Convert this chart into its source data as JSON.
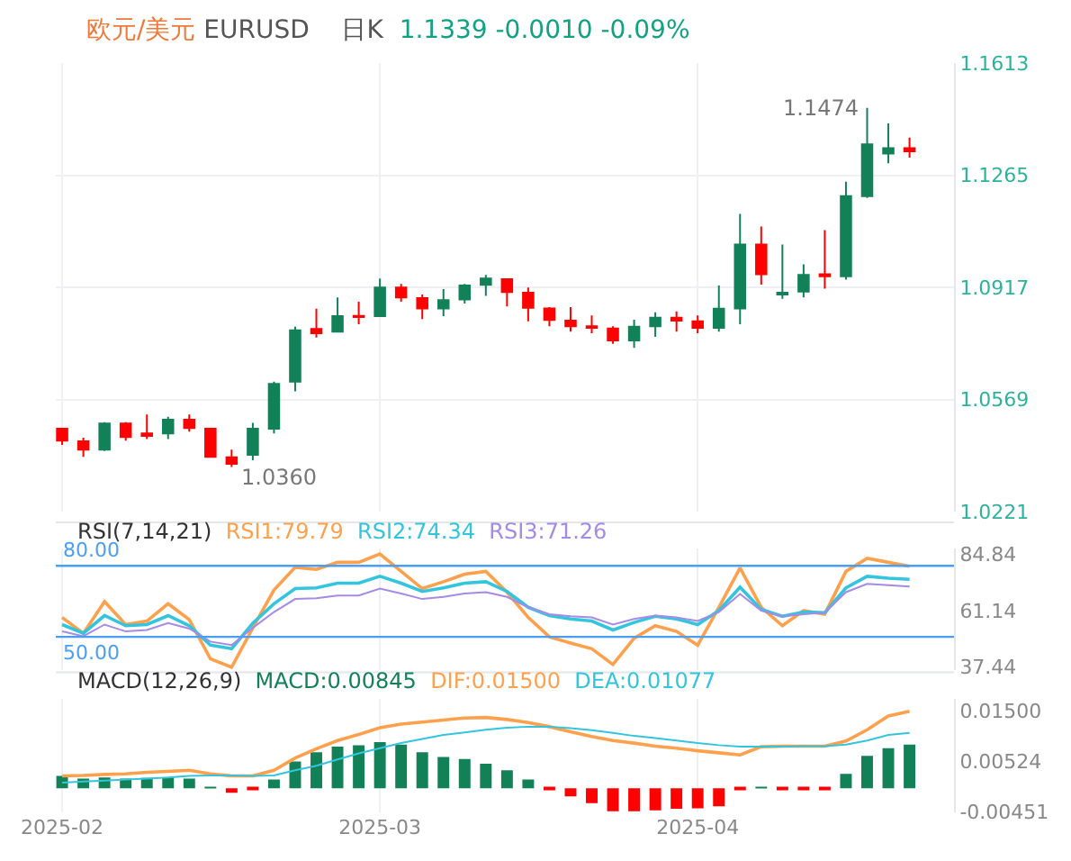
{
  "chart_data": [
    {
      "type": "candlestick",
      "title": "欧元/美元",
      "subtitle": "EURUSD",
      "annotations": [
        "日K",
        "1.1339 -0.0010 -0.09%",
        "1.1474",
        "1.0360"
      ],
      "categories": [
        "2025-02",
        null,
        null,
        null,
        null,
        null,
        null,
        null,
        null,
        null,
        null,
        null,
        null,
        null,
        null,
        "2025-03",
        null,
        null,
        null,
        null,
        null,
        null,
        null,
        null,
        null,
        null,
        null,
        null,
        null,
        null,
        "2025-04",
        null,
        null,
        null,
        null,
        null,
        null,
        null,
        null,
        null,
        null
      ],
      "ohlc": [
        [
          1.0479,
          1.0481,
          1.0429,
          1.0442
        ],
        [
          1.044,
          1.0451,
          1.0392,
          1.0414
        ],
        [
          1.0414,
          1.0499,
          1.041,
          1.0495
        ],
        [
          1.0495,
          1.0499,
          1.0442,
          1.0453
        ],
        [
          1.0464,
          1.0523,
          1.0447,
          1.0457
        ],
        [
          1.0464,
          1.0516,
          1.0447,
          1.0507
        ],
        [
          1.0507,
          1.0523,
          1.047,
          1.0481
        ],
        [
          1.0479,
          1.0482,
          1.039,
          1.0392
        ],
        [
          1.039,
          1.0414,
          1.036,
          1.037
        ],
        [
          1.0398,
          1.0497,
          1.0381,
          1.0479
        ],
        [
          1.0479,
          1.0625,
          1.0464,
          1.0618
        ],
        [
          1.0625,
          1.0795,
          1.0595,
          1.0784
        ],
        [
          1.0788,
          1.0851,
          1.0762,
          1.0775
        ],
        [
          1.078,
          1.0886,
          1.0779,
          1.0828
        ],
        [
          1.0829,
          1.0873,
          1.0803,
          1.0825
        ],
        [
          1.0828,
          1.0945,
          1.0825,
          1.0917
        ],
        [
          1.0917,
          1.0928,
          1.0873,
          1.0886
        ],
        [
          1.0884,
          1.0895,
          1.0819,
          1.0852
        ],
        [
          1.0852,
          1.0912,
          1.0828,
          1.0878
        ],
        [
          1.088,
          1.0928,
          1.0867,
          1.0923
        ],
        [
          1.0925,
          1.0956,
          1.0891,
          1.0945
        ],
        [
          1.0943,
          1.0945,
          1.0858,
          1.0903
        ],
        [
          1.0901,
          1.0917,
          1.0812,
          1.0854
        ],
        [
          1.0852,
          1.0856,
          1.0797,
          1.0816
        ],
        [
          1.0814,
          1.0856,
          1.078,
          1.0797
        ],
        [
          1.0797,
          1.083,
          1.0775,
          1.0792
        ],
        [
          1.079,
          1.0797,
          1.0742,
          1.0753
        ],
        [
          1.0753,
          1.0817,
          1.073,
          1.0795
        ],
        [
          1.0797,
          1.084,
          1.0764,
          1.0823
        ],
        [
          1.0823,
          1.0843,
          1.078,
          1.0814
        ],
        [
          1.0812,
          1.083,
          1.0775,
          1.0792
        ],
        [
          1.0792,
          1.0923,
          1.078,
          1.0851
        ],
        [
          1.0852,
          1.1145,
          1.0803,
          1.105
        ],
        [
          1.105,
          1.1106,
          1.0926,
          1.0958
        ],
        [
          1.0895,
          1.105,
          1.0882,
          1.0901
        ],
        [
          1.0904,
          1.0989,
          1.0886,
          1.0956
        ],
        [
          1.0958,
          1.1095,
          1.0913,
          1.0952
        ],
        [
          1.0952,
          1.1245,
          1.0941,
          1.12
        ],
        [
          1.12,
          1.1474,
          1.1195,
          1.1361
        ],
        [
          1.1332,
          1.1426,
          1.1302,
          1.1349
        ],
        [
          1.1349,
          1.1382,
          1.132,
          1.1339
        ]
      ],
      "ylim": [
        1.0221,
        1.1613
      ],
      "yticks": [
        1.0221,
        1.0569,
        1.0917,
        1.1265,
        1.1613
      ],
      "grid": true,
      "tick_labels": "y"
    },
    {
      "type": "line",
      "title": "RSI(7,14,21)",
      "categories": [
        "2025-02",
        null,
        null,
        null,
        null,
        null,
        null,
        null,
        null,
        null,
        null,
        null,
        null,
        null,
        null,
        "2025-03",
        null,
        null,
        null,
        null,
        null,
        null,
        null,
        null,
        null,
        null,
        null,
        null,
        null,
        null,
        "2025-04",
        null,
        null,
        null,
        null,
        null,
        null,
        null,
        null,
        null,
        null
      ],
      "series": [
        {
          "name": "RSI1:79.79",
          "color": "#ffa04d",
          "values": [
            58.2,
            51.5,
            64.9,
            55.2,
            56.7,
            64.0,
            57.3,
            40.7,
            37.2,
            53.8,
            69.8,
            79.4,
            78.5,
            81.5,
            81.5,
            85.0,
            77.7,
            70.4,
            73.3,
            76.5,
            77.7,
            68.9,
            58.2,
            50.0,
            47.4,
            45.0,
            38.3,
            49.4,
            54.7,
            52.3,
            46.5,
            62.5,
            79.1,
            62.5,
            54.7,
            61.1,
            59.6,
            77.7,
            83.2,
            81.5,
            79.8
          ]
        },
        {
          "name": "RSI2:74.34",
          "color": "#33c5dd",
          "values": [
            55.2,
            51.5,
            59.0,
            54.7,
            55.2,
            59.0,
            54.7,
            46.5,
            45.0,
            55.8,
            64.0,
            70.4,
            70.7,
            72.7,
            72.7,
            75.6,
            72.7,
            69.2,
            70.7,
            72.7,
            73.3,
            69.2,
            62.5,
            59.0,
            57.6,
            56.7,
            52.9,
            56.1,
            58.7,
            57.6,
            55.2,
            61.1,
            71.0,
            61.6,
            58.7,
            60.5,
            60.2,
            70.7,
            75.6,
            74.8,
            74.3
          ]
        },
        {
          "name": "RSI3:71.26",
          "color": "#a58ae6",
          "values": [
            52.3,
            50.3,
            55.2,
            52.3,
            52.9,
            55.8,
            53.5,
            48.0,
            46.5,
            53.8,
            60.5,
            66.0,
            66.3,
            67.5,
            67.5,
            70.4,
            68.3,
            66.0,
            66.9,
            68.3,
            68.9,
            66.9,
            62.5,
            59.6,
            58.7,
            58.2,
            55.2,
            57.6,
            59.0,
            58.2,
            56.7,
            60.5,
            68.1,
            61.1,
            58.7,
            59.6,
            60.2,
            68.9,
            72.4,
            71.8,
            71.3
          ]
        }
      ],
      "ylim": [
        36,
        87.3
      ],
      "yticks": [
        84.84,
        61.14,
        37.44
      ],
      "ref_lines": [
        {
          "axis": "y",
          "value": 80,
          "label": "80.00",
          "color": "#4a9ff5"
        },
        {
          "axis": "y",
          "value": 50,
          "label": "50.00",
          "color": "#4a9ff5"
        }
      ],
      "grid": "x",
      "tick_labels": "y"
    },
    {
      "type": "line",
      "title": "MACD(12,26,9)",
      "categories": [
        "2025-02",
        null,
        null,
        null,
        null,
        null,
        null,
        null,
        null,
        null,
        null,
        null,
        null,
        null,
        null,
        "2025-03",
        null,
        null,
        null,
        null,
        null,
        null,
        null,
        null,
        null,
        null,
        null,
        null,
        null,
        null,
        "2025-04",
        null,
        null,
        null,
        null,
        null,
        null,
        null,
        null,
        null,
        null
      ],
      "series": [
        {
          "name": "MACD:0.00845",
          "type": "bar",
          "colors": [
            "#138158",
            "#138158",
            "#138158",
            "#138158",
            "#138158",
            "#138158",
            "#138158",
            "#138158",
            "#ff0000",
            "#ff0000",
            "#138158",
            "#138158",
            "#138158",
            "#138158",
            "#138158",
            "#138158",
            "#138158",
            "#138158",
            "#138158",
            "#138158",
            "#138158",
            "#138158",
            "#138158",
            "#ff0000",
            "#ff0000",
            "#ff0000",
            "#ff0000",
            "#ff0000",
            "#ff0000",
            "#ff0000",
            "#ff0000",
            "#ff0000",
            "#ff0000",
            "#138158",
            "#ff0000",
            "#ff0000",
            "#ff0000",
            "#138158",
            "#138158",
            "#138158",
            "#138158"
          ],
          "values": [
            0.0024,
            0.0019,
            0.0021,
            0.0019,
            0.002,
            0.0021,
            0.0019,
            0.0001,
            -0.0009,
            -0.0002,
            0.0017,
            0.0052,
            0.007,
            0.0081,
            0.0084,
            0.009,
            0.0085,
            0.007,
            0.0061,
            0.0057,
            0.0048,
            0.0035,
            0.0017,
            -0.0002,
            -0.0016,
            -0.0029,
            -0.0045,
            -0.0045,
            -0.0043,
            -0.004,
            -0.0039,
            -0.0035,
            -0.0002,
            0.0001,
            -0.0001,
            -0.0001,
            -0.0001,
            0.0028,
            0.0063,
            0.0078,
            0.0085
          ]
        },
        {
          "name": "DIF:0.01500",
          "color": "#ffa04d",
          "values": [
            0.0024,
            0.0025,
            0.0027,
            0.0028,
            0.0031,
            0.0033,
            0.0035,
            0.0028,
            0.0024,
            0.0024,
            0.0035,
            0.0059,
            0.0077,
            0.0093,
            0.0105,
            0.0118,
            0.0125,
            0.0129,
            0.0133,
            0.0137,
            0.0138,
            0.0134,
            0.0128,
            0.012,
            0.011,
            0.0101,
            0.0093,
            0.0088,
            0.0082,
            0.0078,
            0.0073,
            0.0069,
            0.0065,
            0.0081,
            0.0082,
            0.0082,
            0.0082,
            0.0092,
            0.0114,
            0.0141,
            0.015
          ]
        },
        {
          "name": "DEA:0.01077",
          "color": "#33c5dd",
          "values": [
            0.0011,
            0.0013,
            0.0015,
            0.0017,
            0.0019,
            0.0021,
            0.0024,
            0.0025,
            0.0025,
            0.0024,
            0.0025,
            0.0035,
            0.0044,
            0.0056,
            0.0068,
            0.0078,
            0.0088,
            0.0096,
            0.0104,
            0.0109,
            0.0114,
            0.0118,
            0.012,
            0.012,
            0.0117,
            0.0113,
            0.0108,
            0.0102,
            0.0098,
            0.0093,
            0.0088,
            0.0084,
            0.0081,
            0.0081,
            0.0081,
            0.0082,
            0.0082,
            0.0085,
            0.0093,
            0.0104,
            0.0108
          ]
        }
      ],
      "ylim": [
        -0.0047,
        0.0175
      ],
      "yticks": [
        {
          "value": 0.015,
          "label": "0.01500"
        },
        0.00524,
        -0.00451
      ],
      "grid": "x"
    }
  ]
}
